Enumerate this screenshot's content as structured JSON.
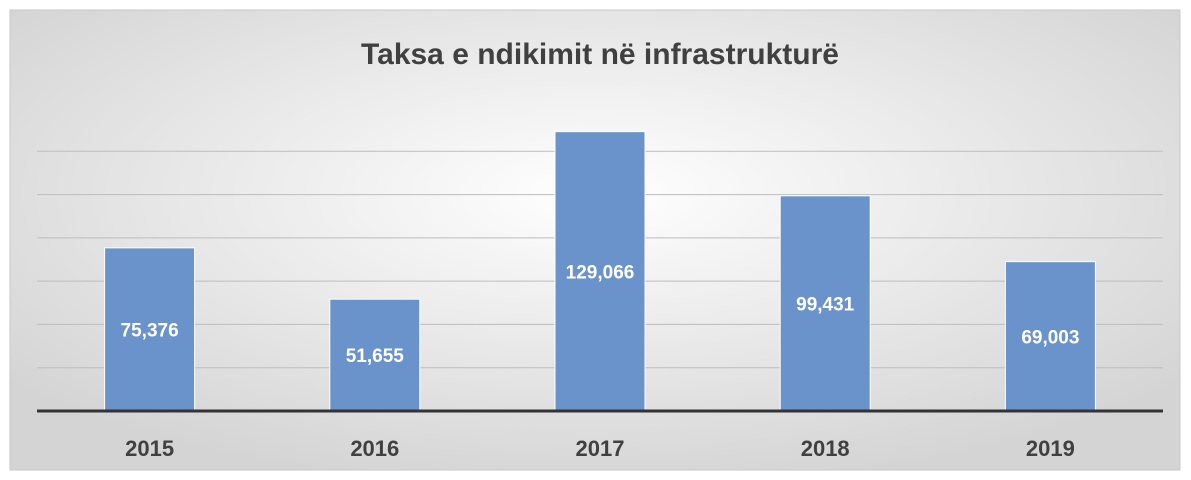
{
  "chart_data": {
    "type": "bar",
    "title": "Taksa e ndikimit në infrastrukturë",
    "categories": [
      "2015",
      "2016",
      "2017",
      "2018",
      "2019"
    ],
    "values": [
      75376,
      51655,
      129066,
      99431,
      69003
    ],
    "value_labels": [
      "75,376",
      "51,655",
      "129,066",
      "99,431",
      "69,003"
    ],
    "color": "#6a93cb",
    "ylim": [
      0,
      140000
    ],
    "yticks": [
      0,
      20000,
      40000,
      60000,
      80000,
      100000,
      120000
    ],
    "grid": true
  }
}
